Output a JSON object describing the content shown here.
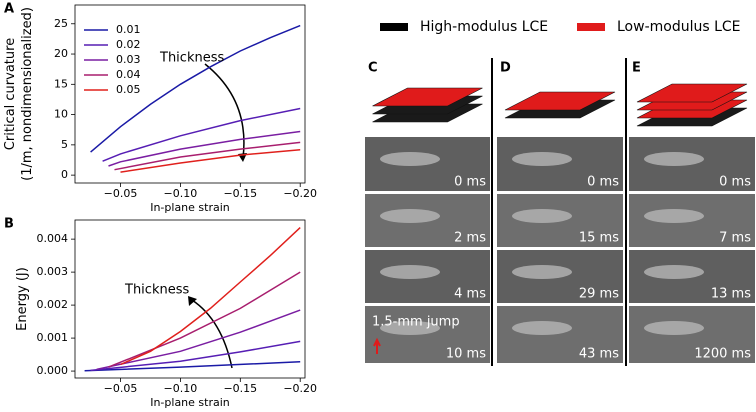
{
  "chart_data": [
    {
      "type": "line",
      "panel_label": "A",
      "xlabel": "In-plane strain",
      "ylabel": "Critical curvature\n(1/m, nondimensionalized)",
      "xlim": [
        -0.012,
        -0.204
      ],
      "xticks": [
        {
          "value": -0.05,
          "label": "−0.05"
        },
        {
          "value": -0.1,
          "label": "−0.10"
        },
        {
          "value": -0.15,
          "label": "−0.15"
        },
        {
          "value": -0.2,
          "label": "−0.20"
        }
      ],
      "ylim": [
        -1.3,
        28.1
      ],
      "yticks": [
        0,
        5,
        10,
        15,
        20,
        25
      ],
      "legend": "upper left",
      "annotation": "Thickness",
      "series": [
        {
          "name": "0.01",
          "color": "#1a1aa6",
          "x": [
            -0.025,
            -0.05,
            -0.075,
            -0.1,
            -0.125,
            -0.15,
            -0.175,
            -0.2
          ],
          "values": [
            3.8,
            8,
            11.7,
            15,
            17.9,
            20.5,
            22.7,
            24.7
          ]
        },
        {
          "name": "0.02",
          "color": "#561eb4",
          "x": [
            -0.035,
            -0.05,
            -0.1,
            -0.15,
            -0.2
          ],
          "values": [
            2.3,
            3.5,
            6.5,
            9,
            11
          ]
        },
        {
          "name": "0.03",
          "color": "#7a1ea2",
          "x": [
            -0.04,
            -0.05,
            -0.1,
            -0.15,
            -0.2
          ],
          "values": [
            1.5,
            2.2,
            4.3,
            5.9,
            7.2
          ]
        },
        {
          "name": "0.04",
          "color": "#a81e6e",
          "x": [
            -0.045,
            -0.1,
            -0.15,
            -0.2
          ],
          "values": [
            0.9,
            3,
            4.3,
            5.4
          ]
        },
        {
          "name": "0.05",
          "color": "#e0201c",
          "x": [
            -0.05,
            -0.1,
            -0.15,
            -0.2
          ],
          "values": [
            0.5,
            2,
            3.3,
            4.2
          ]
        }
      ]
    },
    {
      "type": "line",
      "panel_label": "B",
      "xlabel": "In-plane strain",
      "ylabel": "Energy (J)",
      "xlim": [
        -0.012,
        -0.204
      ],
      "xticks": [
        {
          "value": -0.05,
          "label": "−0.05"
        },
        {
          "value": -0.1,
          "label": "−0.10"
        },
        {
          "value": -0.15,
          "label": "−0.15"
        },
        {
          "value": -0.2,
          "label": "−0.20"
        }
      ],
      "ylim": [
        -0.00021,
        0.00458
      ],
      "yticks": [
        {
          "value": 0,
          "label": "0.000"
        },
        {
          "value": 0.001,
          "label": "0.001"
        },
        {
          "value": 0.002,
          "label": "0.002"
        },
        {
          "value": 0.003,
          "label": "0.003"
        },
        {
          "value": 0.004,
          "label": "0.004"
        }
      ],
      "annotation": "Thickness",
      "series": [
        {
          "name": "0.01",
          "color": "#1a1aa6",
          "x": [
            -0.02,
            -0.1,
            -0.2
          ],
          "values": [
            1e-05,
            0.00012,
            0.00028
          ]
        },
        {
          "name": "0.02",
          "color": "#561eb4",
          "x": [
            -0.025,
            -0.1,
            -0.15,
            -0.2
          ],
          "values": [
            2e-05,
            0.0003,
            0.00058,
            0.0009
          ]
        },
        {
          "name": "0.03",
          "color": "#7a1ea2",
          "x": [
            -0.03,
            -0.1,
            -0.15,
            -0.2
          ],
          "values": [
            5e-05,
            0.0006,
            0.00118,
            0.00185
          ]
        },
        {
          "name": "0.04",
          "color": "#a81e6e",
          "x": [
            -0.04,
            -0.1,
            -0.15,
            -0.2
          ],
          "values": [
            0.00012,
            0.001,
            0.0019,
            0.003
          ]
        },
        {
          "name": "0.05",
          "color": "#e0201c",
          "x": [
            -0.05,
            -0.075,
            -0.1,
            -0.125,
            -0.15,
            -0.175,
            -0.2
          ],
          "values": [
            0.0002,
            0.0006,
            0.0012,
            0.0019,
            0.0027,
            0.0035,
            0.00435
          ]
        }
      ]
    }
  ],
  "figure": {
    "legend": [
      {
        "label": "High-modulus LCE",
        "color": "#000000"
      },
      {
        "label": "Low-modulus LCE",
        "color": "#e01b1b"
      }
    ],
    "panels": [
      {
        "label": "C",
        "times": [
          "0 ms",
          "2 ms",
          "4 ms",
          "10 ms"
        ]
      },
      {
        "label": "D",
        "times": [
          "0 ms",
          "15 ms",
          "29 ms",
          "43 ms"
        ]
      },
      {
        "label": "E",
        "times": [
          "0 ms",
          "7 ms",
          "13 ms",
          "1200 ms"
        ]
      }
    ],
    "jump_note": "1.5-mm jump"
  }
}
